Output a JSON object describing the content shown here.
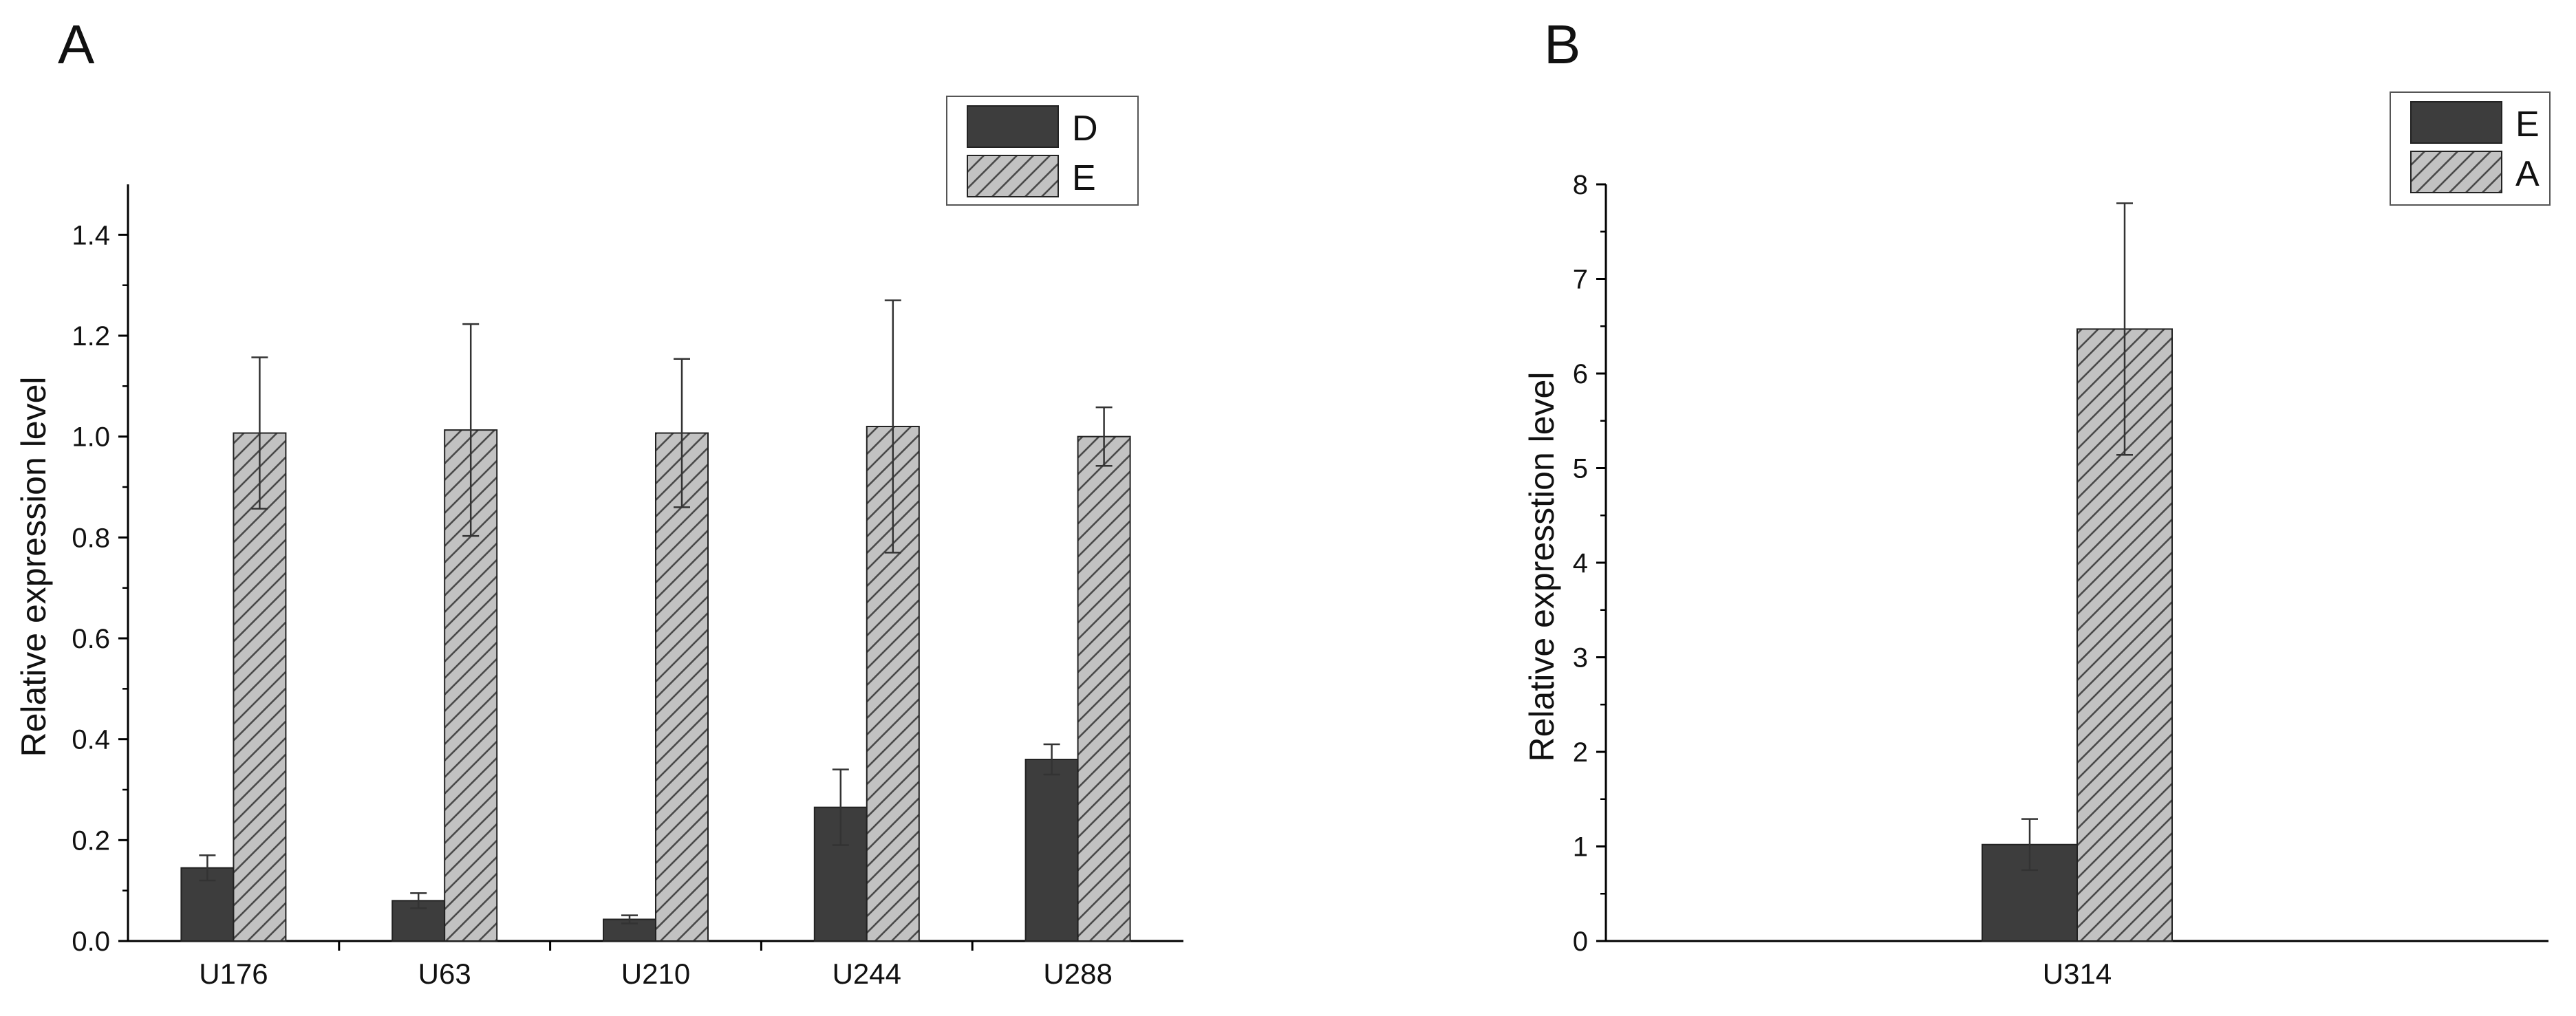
{
  "colors": {
    "dark_bar": "#3d3d3d",
    "hatch_bar": "#c2c2c2",
    "hatch_line": "#4a4a4a",
    "axis": "#000000"
  },
  "chart_data": [
    {
      "type": "bar",
      "panel_label": "A",
      "categories": [
        "U176",
        "U63",
        "U210",
        "U244",
        "U288"
      ],
      "series": [
        {
          "name": "D",
          "values": [
            0.145,
            0.08,
            0.043,
            0.265,
            0.36
          ],
          "errors": [
            0.025,
            0.015,
            0.008,
            0.075,
            0.03
          ],
          "pattern": "solid"
        },
        {
          "name": "E",
          "values": [
            1.007,
            1.013,
            1.007,
            1.02,
            1.0
          ],
          "errors": [
            0.15,
            0.21,
            0.147,
            0.25,
            0.058
          ],
          "pattern": "hatched"
        }
      ],
      "ylabel": "Relative expression level",
      "xlabel": "",
      "ylim": [
        0,
        1.5
      ],
      "yticks": [
        0.0,
        0.2,
        0.4,
        0.6,
        0.8,
        1.0,
        1.2,
        1.4
      ],
      "ytick_labels": [
        "0.0",
        "0.2",
        "0.4",
        "0.6",
        "0.8",
        "1.0",
        "1.2",
        "1.4"
      ],
      "legend": "top-right",
      "grid": false
    },
    {
      "type": "bar",
      "panel_label": "B",
      "categories": [
        "U314"
      ],
      "series": [
        {
          "name": "E",
          "values": [
            1.02
          ],
          "errors": [
            0.27
          ],
          "pattern": "solid"
        },
        {
          "name": "A",
          "values": [
            6.47
          ],
          "errors": [
            1.33
          ],
          "pattern": "hatched"
        }
      ],
      "ylabel": "Relative expresstion level",
      "xlabel": "",
      "ylim": [
        0,
        8
      ],
      "yticks": [
        0,
        1,
        2,
        3,
        4,
        5,
        6,
        7,
        8
      ],
      "ytick_labels": [
        "0",
        "1",
        "2",
        "3",
        "4",
        "5",
        "6",
        "7",
        "8"
      ],
      "legend": "top-right",
      "grid": false
    }
  ]
}
